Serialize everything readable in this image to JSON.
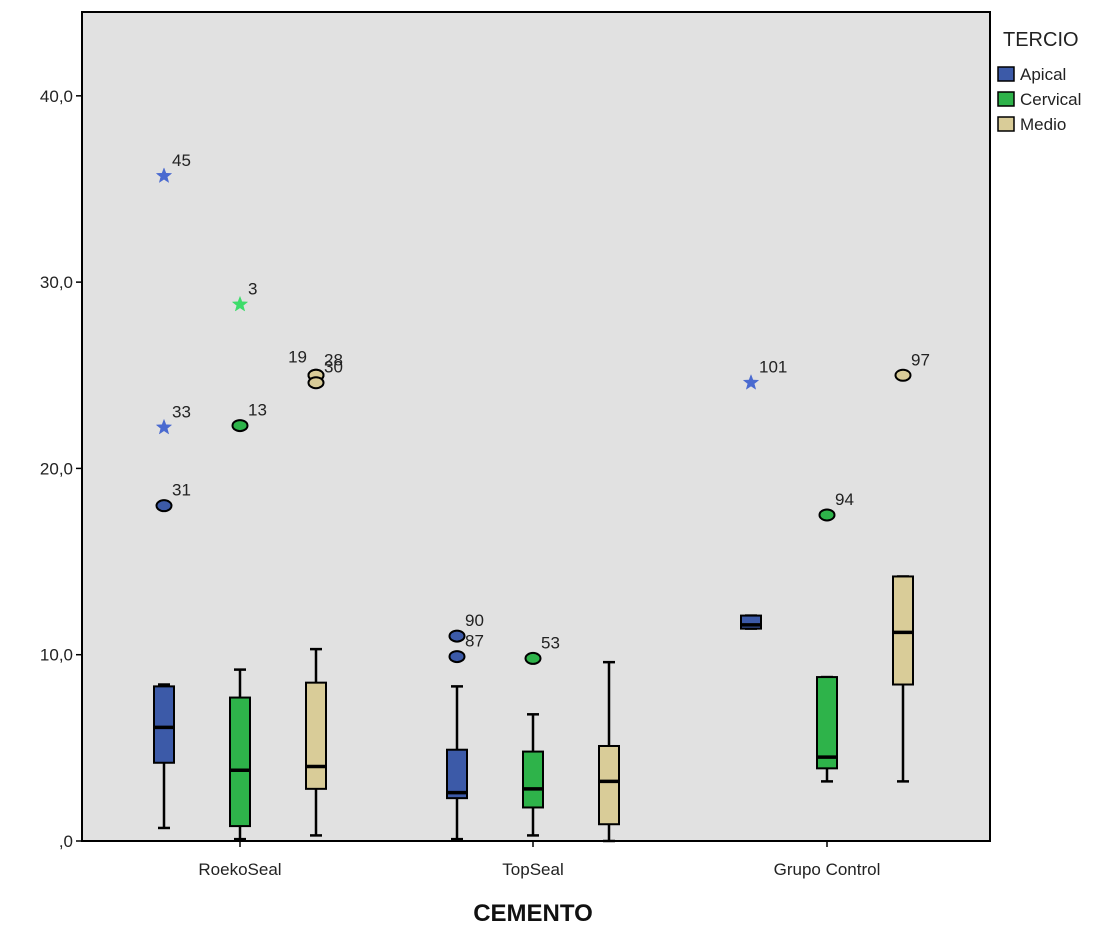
{
  "chart_data": {
    "type": "boxplot",
    "xlabel": "CEMENTO",
    "ylabel": "",
    "ylim": [
      0,
      44.5
    ],
    "y_ticks": [
      0,
      10,
      20,
      30,
      40
    ],
    "y_tick_labels": [
      ",0",
      "10,0",
      "20,0",
      "30,0",
      "40,0"
    ],
    "categories": [
      "RoekoSeal",
      "TopSeal",
      "Grupo Control"
    ],
    "legend": {
      "title": "TERCIO",
      "position": "right"
    },
    "colors": {
      "Apical": "#3c5aa8",
      "Cervical": "#2eb34a",
      "Medio": "#d9cc98",
      "background": "#e1e1e1",
      "star_apical": "#4a6ad0",
      "star_cervical": "#3ddc6a"
    },
    "series": [
      {
        "name": "Apical",
        "boxes": [
          {
            "whisker_low": 0.7,
            "q1": 4.2,
            "median": 6.1,
            "q3": 8.3,
            "whisker_high": 8.4
          },
          {
            "whisker_low": 0.1,
            "q1": 2.3,
            "median": 2.6,
            "q3": 4.9,
            "whisker_high": 8.3
          },
          {
            "whisker_low": 11.4,
            "q1": 11.4,
            "median": 11.6,
            "q3": 12.1,
            "whisker_high": 12.1
          }
        ],
        "outliers": [
          {
            "category": "RoekoSeal",
            "value": 35.7,
            "label": "45",
            "marker": "star"
          },
          {
            "category": "RoekoSeal",
            "value": 22.2,
            "label": "33",
            "marker": "star"
          },
          {
            "category": "RoekoSeal",
            "value": 18.0,
            "label": "31",
            "marker": "circle"
          },
          {
            "category": "TopSeal",
            "value": 11.0,
            "label": "90",
            "marker": "circle"
          },
          {
            "category": "TopSeal",
            "value": 9.9,
            "label": "87",
            "marker": "circle"
          },
          {
            "category": "Grupo Control",
            "value": 24.6,
            "label": "101",
            "marker": "star"
          }
        ]
      },
      {
        "name": "Cervical",
        "boxes": [
          {
            "whisker_low": 0.1,
            "q1": 0.8,
            "median": 3.8,
            "q3": 7.7,
            "whisker_high": 9.2
          },
          {
            "whisker_low": 0.3,
            "q1": 1.8,
            "median": 2.8,
            "q3": 4.8,
            "whisker_high": 6.8
          },
          {
            "whisker_low": 3.2,
            "q1": 3.9,
            "median": 4.5,
            "q3": 8.8,
            "whisker_high": 8.8
          }
        ],
        "outliers": [
          {
            "category": "RoekoSeal",
            "value": 28.8,
            "label": "3",
            "marker": "star"
          },
          {
            "category": "RoekoSeal",
            "value": 22.3,
            "label": "13",
            "marker": "circle"
          },
          {
            "category": "TopSeal",
            "value": 9.8,
            "label": "53",
            "marker": "circle"
          },
          {
            "category": "Grupo Control",
            "value": 17.5,
            "label": "94",
            "marker": "circle"
          }
        ]
      },
      {
        "name": "Medio",
        "boxes": [
          {
            "whisker_low": 0.3,
            "q1": 2.8,
            "median": 4.0,
            "q3": 8.5,
            "whisker_high": 10.3
          },
          {
            "whisker_low": 0.0,
            "q1": 0.9,
            "median": 3.2,
            "q3": 5.1,
            "whisker_high": 9.6
          },
          {
            "whisker_low": 3.2,
            "q1": 8.4,
            "median": 11.2,
            "q3": 14.2,
            "whisker_high": 14.2
          }
        ],
        "outliers": [
          {
            "category": "RoekoSeal",
            "value": 25.0,
            "label": "19",
            "marker": "circle",
            "label_side": "left"
          },
          {
            "category": "RoekoSeal",
            "value": 25.0,
            "label": "28",
            "marker": "circle"
          },
          {
            "category": "RoekoSeal",
            "value": 24.6,
            "label": "30",
            "marker": "circle"
          },
          {
            "category": "Grupo Control",
            "value": 25.0,
            "label": "97",
            "marker": "circle"
          }
        ]
      }
    ]
  }
}
